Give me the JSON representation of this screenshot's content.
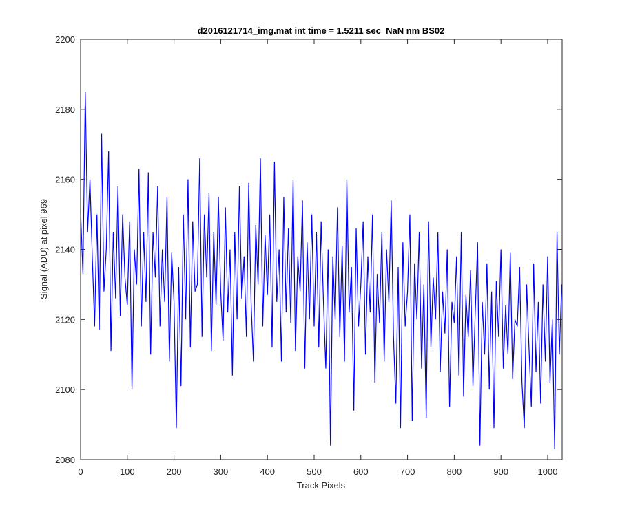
{
  "chart_data": {
    "type": "line",
    "title": "d2016121714_img.mat int time = 1.5211 sec  NaN nm BS02",
    "xlabel": "Track Pixels",
    "ylabel": "Signal (ADU) at pixel 969",
    "xlim": [
      0,
      1031
    ],
    "ylim": [
      2080,
      2200
    ],
    "xticks": [
      0,
      100,
      200,
      300,
      400,
      500,
      600,
      700,
      800,
      900,
      1000
    ],
    "yticks": [
      2080,
      2100,
      2120,
      2140,
      2160,
      2180,
      2200
    ],
    "x": [
      0,
      5,
      10,
      15,
      20,
      25,
      30,
      35,
      40,
      45,
      50,
      55,
      60,
      65,
      70,
      75,
      80,
      85,
      90,
      95,
      100,
      105,
      110,
      115,
      120,
      125,
      130,
      135,
      140,
      145,
      150,
      155,
      160,
      165,
      170,
      175,
      180,
      185,
      190,
      195,
      200,
      205,
      210,
      215,
      220,
      225,
      230,
      235,
      240,
      245,
      250,
      255,
      260,
      265,
      270,
      275,
      280,
      285,
      290,
      295,
      300,
      305,
      310,
      315,
      320,
      325,
      330,
      335,
      340,
      345,
      350,
      355,
      360,
      365,
      370,
      375,
      380,
      385,
      390,
      395,
      400,
      405,
      410,
      415,
      420,
      425,
      430,
      435,
      440,
      445,
      450,
      455,
      460,
      465,
      470,
      475,
      480,
      485,
      490,
      495,
      500,
      505,
      510,
      515,
      520,
      525,
      530,
      535,
      540,
      545,
      550,
      555,
      560,
      565,
      570,
      575,
      580,
      585,
      590,
      595,
      600,
      605,
      610,
      615,
      620,
      625,
      630,
      635,
      640,
      645,
      650,
      655,
      660,
      665,
      670,
      675,
      680,
      685,
      690,
      695,
      700,
      705,
      710,
      715,
      720,
      725,
      730,
      735,
      740,
      745,
      750,
      755,
      760,
      765,
      770,
      775,
      780,
      785,
      790,
      795,
      800,
      805,
      810,
      815,
      820,
      825,
      830,
      835,
      840,
      845,
      850,
      855,
      860,
      865,
      870,
      875,
      880,
      885,
      890,
      895,
      900,
      905,
      910,
      915,
      920,
      925,
      930,
      935,
      940,
      945,
      950,
      955,
      960,
      965,
      970,
      975,
      980,
      985,
      990,
      995,
      1000,
      1005,
      1010,
      1015,
      1020,
      1025,
      1030
    ],
    "series": [
      {
        "color": "#0000ff",
        "values": [
          2151,
          2133,
          2185,
          2145,
          2160,
          2138,
          2118,
          2150,
          2117,
          2173,
          2128,
          2140,
          2168,
          2111,
          2145,
          2126,
          2158,
          2121,
          2150,
          2132,
          2124,
          2148,
          2100,
          2140,
          2130,
          2163,
          2118,
          2145,
          2125,
          2162,
          2110,
          2145,
          2132,
          2158,
          2118,
          2140,
          2125,
          2155,
          2108,
          2139,
          2125,
          2089,
          2135,
          2101,
          2150,
          2120,
          2160,
          2112,
          2148,
          2128,
          2130,
          2166,
          2115,
          2150,
          2132,
          2156,
          2111,
          2145,
          2124,
          2155,
          2128,
          2114,
          2152,
          2122,
          2140,
          2104,
          2145,
          2120,
          2158,
          2126,
          2138,
          2115,
          2159,
          2125,
          2108,
          2147,
          2130,
          2166,
          2118,
          2144,
          2127,
          2150,
          2112,
          2165,
          2125,
          2140,
          2108,
          2155,
          2122,
          2146,
          2119,
          2160,
          2111,
          2138,
          2128,
          2154,
          2106,
          2142,
          2120,
          2150,
          2118,
          2145,
          2112,
          2148,
          2125,
          2106,
          2140,
          2084,
          2138,
          2120,
          2152,
          2115,
          2141,
          2108,
          2160,
          2122,
          2135,
          2094,
          2146,
          2118,
          2130,
          2148,
          2110,
          2138,
          2122,
          2150,
          2102,
          2133,
          2119,
          2145,
          2108,
          2140,
          2125,
          2154,
          2115,
          2096,
          2135,
          2089,
          2142,
          2118,
          2128,
          2150,
          2091,
          2136,
          2120,
          2145,
          2106,
          2130,
          2092,
          2148,
          2112,
          2132,
          2120,
          2145,
          2105,
          2128,
          2116,
          2140,
          2095,
          2125,
          2119,
          2138,
          2104,
          2145,
          2098,
          2127,
          2115,
          2134,
          2101,
          2122,
          2142,
          2084,
          2125,
          2110,
          2136,
          2100,
          2128,
          2089,
          2131,
          2115,
          2140,
          2106,
          2124,
          2110,
          2139,
          2103,
          2120,
          2118,
          2135,
          2102,
          2089,
          2130,
          2112,
          2095,
          2136,
          2105,
          2125,
          2096,
          2130,
          2108,
          2138,
          2102,
          2120,
          2083,
          2145,
          2110,
          2130
        ]
      }
    ]
  }
}
